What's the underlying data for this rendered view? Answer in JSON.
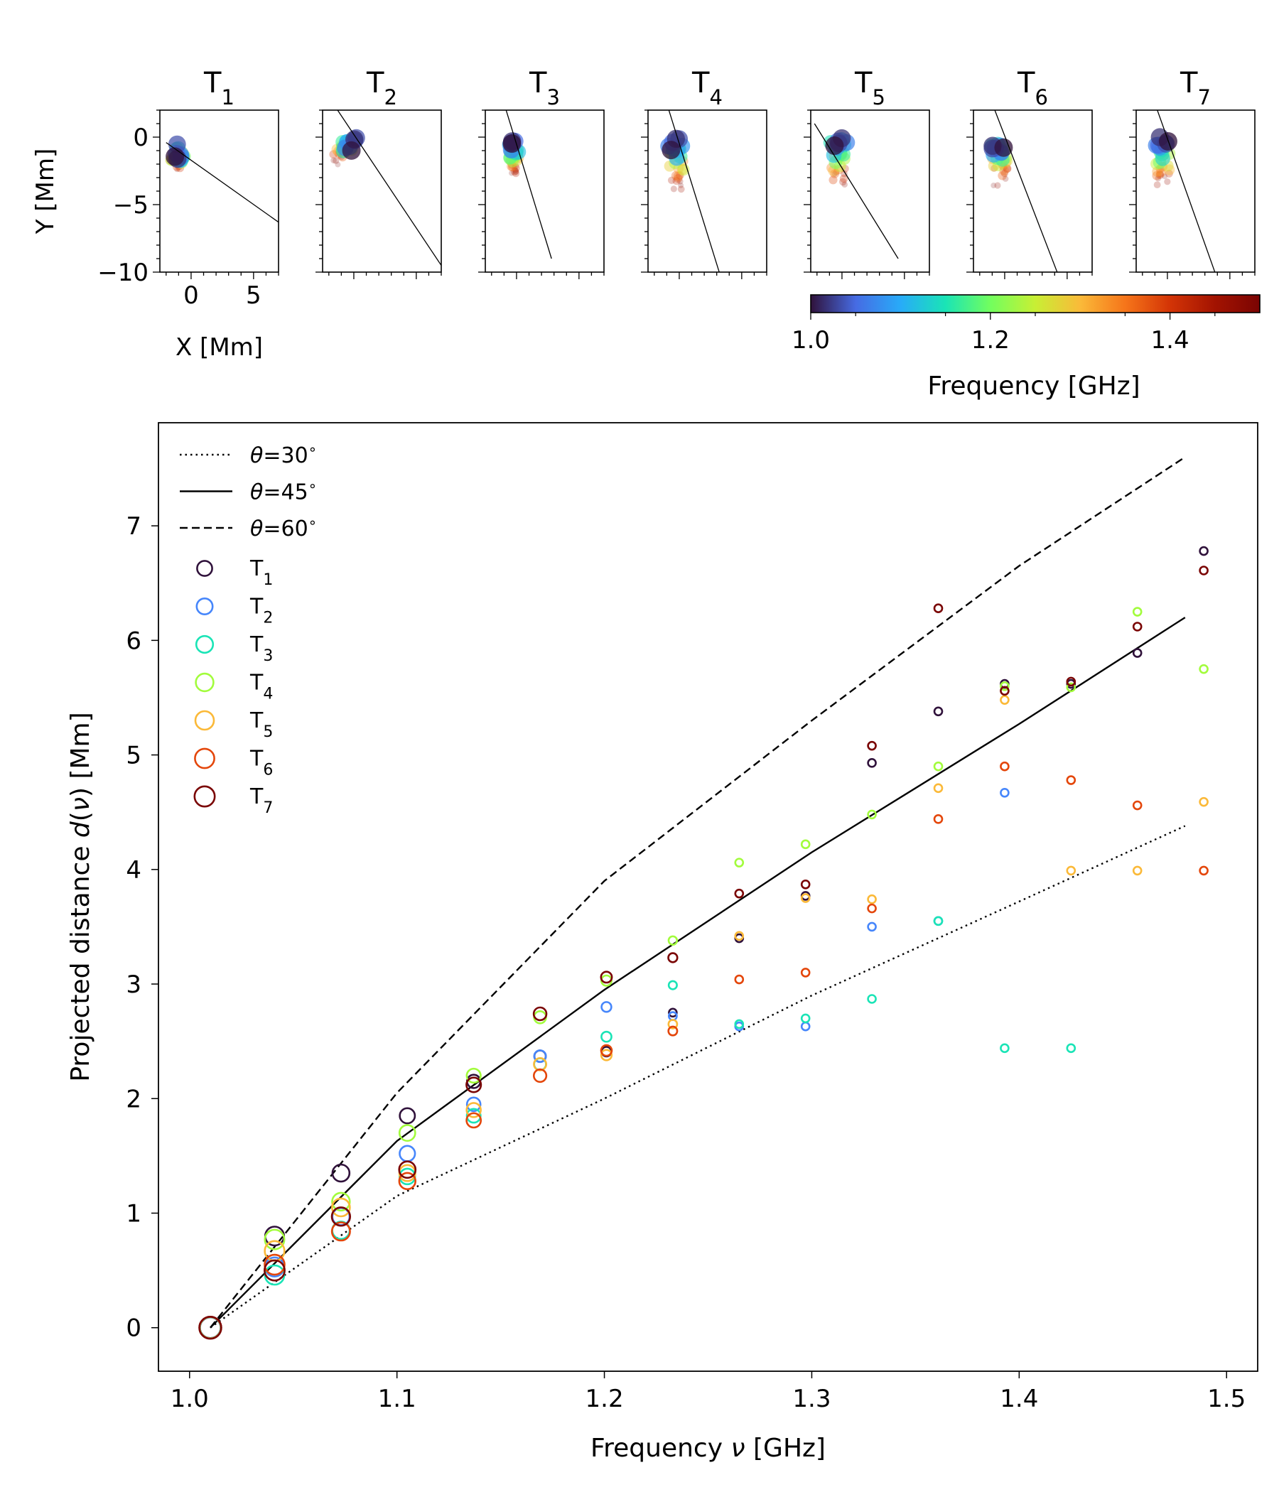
{
  "chart_data": [
    {
      "type": "scatter",
      "description_panels": "top row",
      "panel_titles": [
        {
          "base": "T",
          "sub": "1"
        },
        {
          "base": "T",
          "sub": "2"
        },
        {
          "base": "T",
          "sub": "3"
        },
        {
          "base": "T",
          "sub": "4"
        },
        {
          "base": "T",
          "sub": "5"
        },
        {
          "base": "T",
          "sub": "6"
        },
        {
          "base": "T",
          "sub": "7"
        }
      ],
      "xlabel": "X [Mm]",
      "ylabel": "Y [Mm]",
      "xlim": [
        -2.5,
        7.0
      ],
      "ylim": [
        -10,
        2
      ],
      "xticks": [
        0,
        5
      ],
      "yticks": [
        0,
        -5,
        -10
      ],
      "ytick_labels": [
        "0",
        "−5",
        "−10"
      ],
      "fit_lines": [
        {
          "x": [
            -2.0,
            7.0
          ],
          "y": [
            -0.4,
            -6.3
          ]
        },
        {
          "x": [
            -1.3,
            7.0
          ],
          "y": [
            2.0,
            -9.5
          ]
        },
        {
          "x": [
            -1.0,
            2.8
          ],
          "y": [
            2.5,
            -9.0
          ]
        },
        {
          "x": [
            -1.0,
            3.2
          ],
          "y": [
            2.5,
            -10.0
          ]
        },
        {
          "x": [
            -2.2,
            4.5
          ],
          "y": [
            1.0,
            -9.0
          ]
        },
        {
          "x": [
            -1.0,
            4.2
          ],
          "y": [
            2.5,
            -10.0
          ]
        },
        {
          "x": [
            -1.0,
            3.8
          ],
          "y": [
            2.5,
            -10.0
          ]
        }
      ],
      "source_points": [
        {
          "fit": [
            -1.0,
            -1.0,
            -1.3,
            -2.0
          ],
          "scatter": 0.6
        },
        {
          "fit": [
            0.0,
            -0.5,
            -1.45,
            -1.4
          ],
          "scatter": 0.5
        },
        {
          "fit": [
            -0.2,
            -0.5,
            -0.2,
            -2.4
          ],
          "scatter": 0.4
        },
        {
          "fit": [
            -0.3,
            -0.5,
            -0.15,
            -3.2
          ],
          "scatter": 0.6
        },
        {
          "fit": [
            -0.3,
            -0.3,
            -0.2,
            -2.9
          ],
          "scatter": 0.7
        },
        {
          "fit": [
            -0.5,
            -0.3,
            -0.35,
            -2.8
          ],
          "scatter": 0.6
        },
        {
          "fit": [
            -0.5,
            -0.3,
            -0.2,
            -3.0
          ],
          "scatter": 0.6
        }
      ],
      "colorbar": {
        "label": "Frequency [GHz]",
        "range": [
          1.0,
          1.5
        ],
        "ticks": [
          "1.0",
          "1.2",
          "1.4"
        ],
        "tick_values": [
          1.0,
          1.2,
          1.4
        ],
        "colormap": "turbo"
      }
    },
    {
      "type": "scatter",
      "description_panels": "main plot",
      "xlabel_parts": [
        "Frequency ",
        "ν",
        " [GHz]"
      ],
      "ylabel_parts": [
        "Projected distance ",
        "d",
        "(",
        "ν",
        ") [Mm]"
      ],
      "xlim": [
        0.985,
        1.515
      ],
      "ylim": [
        -0.38,
        7.9
      ],
      "xticks": [
        1.0,
        1.1,
        1.2,
        1.3,
        1.4,
        1.5
      ],
      "xtick_labels": [
        "1.0",
        "1.1",
        "1.2",
        "1.3",
        "1.4",
        "1.5"
      ],
      "yticks": [
        0,
        1,
        2,
        3,
        4,
        5,
        6,
        7
      ],
      "ytick_labels": [
        "0",
        "1",
        "2",
        "3",
        "4",
        "5",
        "6",
        "7"
      ],
      "frequencies": [
        1.01,
        1.041,
        1.073,
        1.105,
        1.137,
        1.169,
        1.201,
        1.233,
        1.265,
        1.297,
        1.329,
        1.361,
        1.393,
        1.425,
        1.457,
        1.489
      ],
      "model_lines": [
        {
          "name": "θ=30°",
          "theta": "30",
          "style": "dotted",
          "x": [
            1.01,
            1.1,
            1.2,
            1.3,
            1.4,
            1.48
          ],
          "y": [
            0.0,
            1.15,
            2.0,
            2.9,
            3.72,
            4.38
          ]
        },
        {
          "name": "θ=45°",
          "theta": "45",
          "style": "solid",
          "x": [
            1.01,
            1.1,
            1.2,
            1.3,
            1.4,
            1.48
          ],
          "y": [
            0.0,
            1.63,
            2.95,
            4.15,
            5.27,
            6.2
          ]
        },
        {
          "name": "θ=60°",
          "theta": "60",
          "style": "dashed",
          "x": [
            1.01,
            1.1,
            1.2,
            1.3,
            1.4,
            1.48
          ],
          "y": [
            0.0,
            2.05,
            3.9,
            5.3,
            6.65,
            7.6
          ]
        }
      ],
      "series": [
        {
          "name": "T1",
          "label_base": "T",
          "label_sub": "1",
          "color": "#30123b",
          "values": [
            0.0,
            0.8,
            1.35,
            1.85,
            2.15,
            2.37,
            2.41,
            2.75,
            3.4,
            3.77,
            4.93,
            5.38,
            5.62,
            5.62,
            5.89,
            6.78
          ]
        },
        {
          "name": "T2",
          "label_base": "T",
          "label_sub": "2",
          "color": "#4686fb",
          "values": [
            0.0,
            0.53,
            0.97,
            1.52,
            1.95,
            2.37,
            2.8,
            2.72,
            2.63,
            2.63,
            3.5,
            3.55,
            4.67,
            null,
            null,
            null
          ]
        },
        {
          "name": "T3",
          "label_base": "T",
          "label_sub": "3",
          "color": "#1ae4b6",
          "values": [
            0.0,
            0.46,
            0.85,
            1.32,
            1.85,
            2.3,
            2.54,
            2.99,
            2.65,
            2.7,
            2.87,
            3.55,
            2.44,
            2.44,
            null,
            null
          ]
        },
        {
          "name": "T4",
          "label_base": "T",
          "label_sub": "4",
          "color": "#a2fc3c",
          "values": [
            0.0,
            0.77,
            1.1,
            1.7,
            2.2,
            2.71,
            3.03,
            3.38,
            4.06,
            4.22,
            4.48,
            4.9,
            5.6,
            5.59,
            6.25,
            5.75
          ]
        },
        {
          "name": "T5",
          "label_base": "T",
          "label_sub": "5",
          "color": "#fbb938",
          "values": [
            0.0,
            0.67,
            1.05,
            1.35,
            1.9,
            2.3,
            2.38,
            2.65,
            3.42,
            3.75,
            3.74,
            4.71,
            5.48,
            3.99,
            3.99,
            4.59
          ]
        },
        {
          "name": "T6",
          "label_base": "T",
          "label_sub": "6",
          "color": "#e4460a",
          "values": [
            0.0,
            0.55,
            0.84,
            1.28,
            1.81,
            2.2,
            2.42,
            2.59,
            3.04,
            3.1,
            3.66,
            4.44,
            4.9,
            4.78,
            4.56,
            3.99
          ]
        },
        {
          "name": "T7",
          "label_base": "T",
          "label_sub": "7",
          "color": "#7a0403",
          "values": [
            0.0,
            0.5,
            0.97,
            1.38,
            2.12,
            2.74,
            3.06,
            3.23,
            3.79,
            3.87,
            5.08,
            6.28,
            5.56,
            5.64,
            6.12,
            6.61
          ]
        }
      ]
    }
  ]
}
